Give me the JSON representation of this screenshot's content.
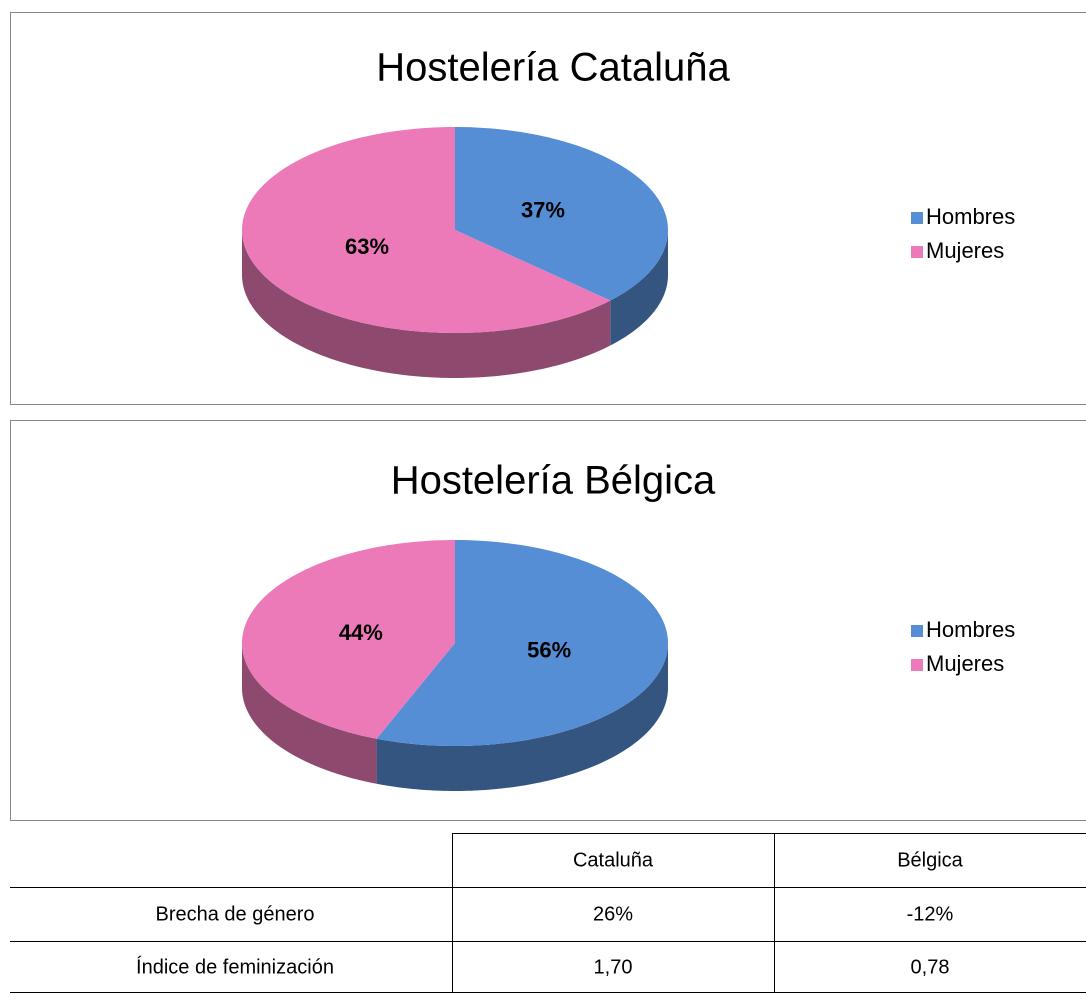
{
  "chart_data": [
    {
      "type": "pie",
      "title": "Hostelería Cataluña",
      "categories": [
        "Hombres",
        "Mujeres"
      ],
      "values": [
        37,
        63
      ],
      "value_labels": [
        "37%",
        "63%"
      ],
      "colors": [
        "#558ed5",
        "#ec7ab8"
      ]
    },
    {
      "type": "pie",
      "title": "Hostelería Bélgica",
      "categories": [
        "Hombres",
        "Mujeres"
      ],
      "values": [
        56,
        44
      ],
      "value_labels": [
        "56%",
        "44%"
      ],
      "colors": [
        "#558ed5",
        "#ec7ab8"
      ]
    }
  ],
  "table": {
    "columns": [
      "Cataluña",
      "Bélgica"
    ],
    "rows": [
      [
        "Brecha de género",
        "26%",
        "-12%"
      ],
      [
        "Índice de feminización",
        "1,70",
        "0,78"
      ]
    ]
  }
}
